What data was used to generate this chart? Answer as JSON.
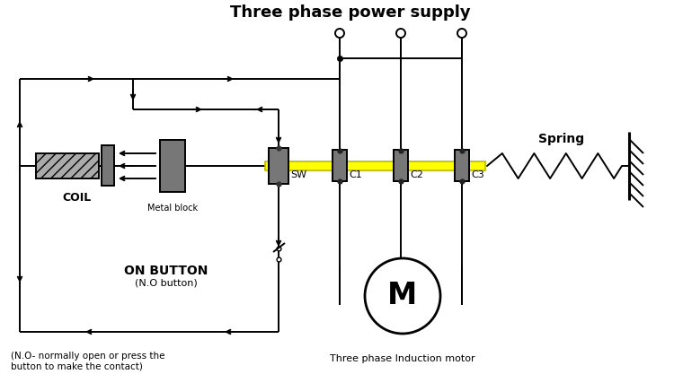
{
  "title": "Three phase power supply",
  "title_fontsize": 13,
  "motor_label": "M",
  "motor_sublabel": "Three phase Induction motor",
  "coil_label": "COIL",
  "metal_block_label": "Metal block",
  "sw_label": "SW",
  "c1_label": "C1",
  "c2_label": "C2",
  "c3_label": "C3",
  "spring_label": "Spring",
  "on_button_label": "ON BUTTON",
  "on_button_sub": "(N.O button)",
  "footnote": "(N.O- normally open or press the\nbutton to make the contact)",
  "bg_color": "#ffffff",
  "bar_color": "#FFFF00",
  "gray_color": "#777777",
  "line_color": "#000000",
  "lw": 1.4
}
